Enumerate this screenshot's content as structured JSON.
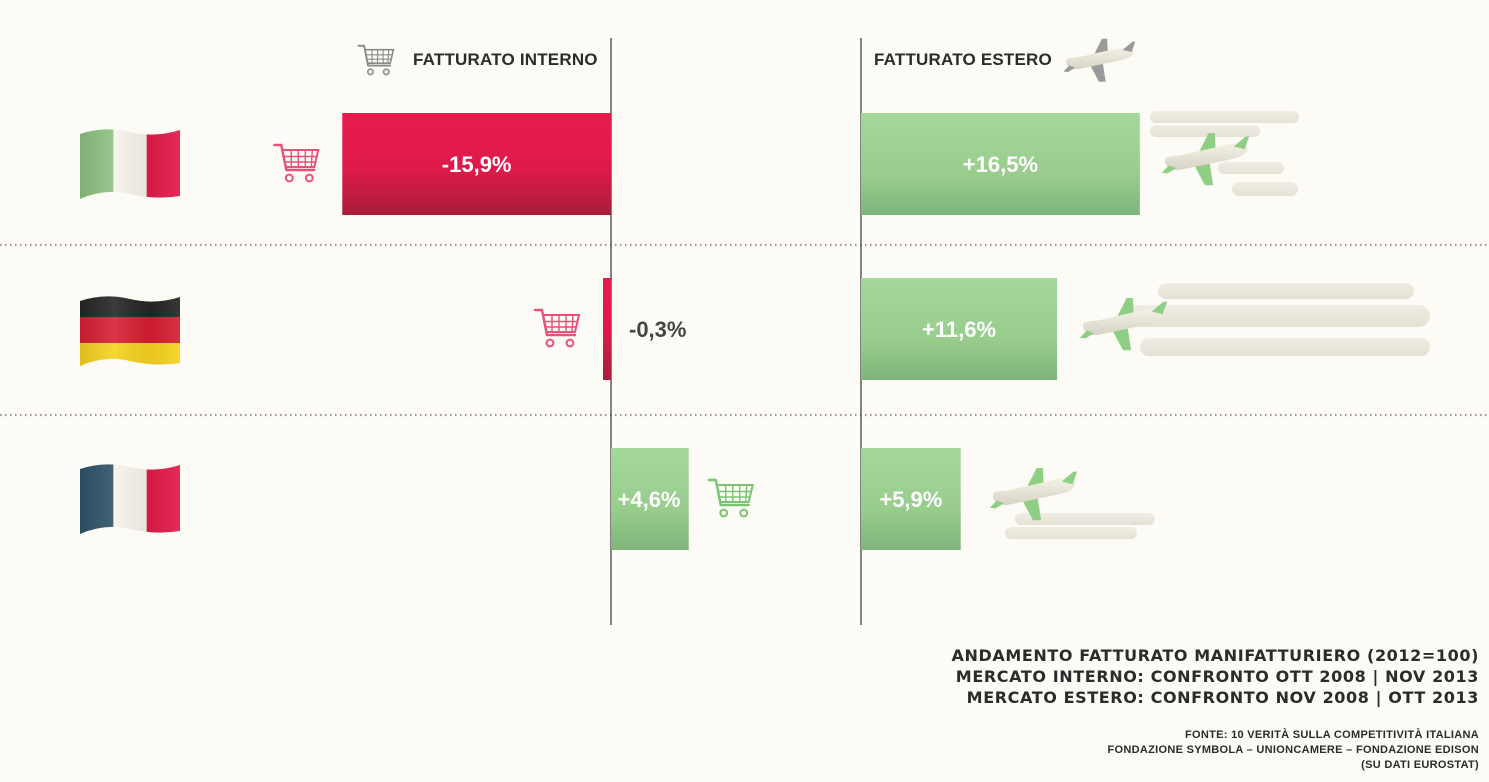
{
  "headers": {
    "internal": "FATTURATO INTERNO",
    "external": "FATTURATO ESTERO"
  },
  "icons": {
    "header_internal": "shopping-cart-icon",
    "header_external": "airplane-icon",
    "row_internal": "shopping-cart-icon",
    "row_external": "airplane-icon"
  },
  "colors": {
    "negative": "#e31b4b",
    "positive": "#9fd394",
    "background": "#fdfbf5",
    "axis": "#333333"
  },
  "chart_data": {
    "type": "bar",
    "orientation": "horizontal",
    "unit": "%",
    "categories": [
      "Italia",
      "Germania",
      "Francia"
    ],
    "series": [
      {
        "name": "FATTURATO INTERNO",
        "values": [
          -15.9,
          -0.3,
          4.6
        ],
        "labels": [
          "-15,9%",
          "-0,3%",
          "+4,6%"
        ]
      },
      {
        "name": "FATTURATO ESTERO",
        "values": [
          16.5,
          11.6,
          5.9
        ],
        "labels": [
          "+16,5%",
          "+11,6%",
          "+5,9%"
        ]
      }
    ],
    "flags": [
      "italy-flag",
      "germany-flag",
      "france-flag"
    ],
    "grid": false,
    "legend": "top"
  },
  "caption": {
    "line1": "ANDAMENTO FATTURATO MANIFATTURIERO (2012=100)",
    "line2": "MERCATO INTERNO: CONFRONTO OTT 2008 | NOV 2013",
    "line3": "MERCATO ESTERO: CONFRONTO NOV 2008 | OTT 2013"
  },
  "source": {
    "line1": "FONTE: 10 VERITÀ SULLA COMPETITIVITÀ ITALIANA",
    "line2": "FONDAZIONE SYMBOLA – UNIONCAMERE – FONDAZIONE EDISON",
    "line3": "(SU DATI EUROSTAT)"
  }
}
